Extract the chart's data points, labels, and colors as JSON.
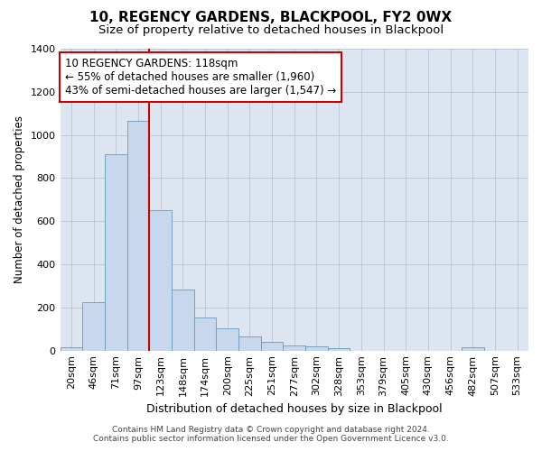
{
  "title": "10, REGENCY GARDENS, BLACKPOOL, FY2 0WX",
  "subtitle": "Size of property relative to detached houses in Blackpool",
  "xlabel": "Distribution of detached houses by size in Blackpool",
  "ylabel": "Number of detached properties",
  "bar_color": "#c8d8ec",
  "bar_edge_color": "#6699bb",
  "grid_color": "#c0c8d8",
  "bg_color": "#dde6f0",
  "vline_color": "#cc0000",
  "vline_x_index": 4,
  "categories": [
    "20sqm",
    "46sqm",
    "71sqm",
    "97sqm",
    "123sqm",
    "148sqm",
    "174sqm",
    "200sqm",
    "225sqm",
    "251sqm",
    "277sqm",
    "302sqm",
    "328sqm",
    "353sqm",
    "379sqm",
    "405sqm",
    "430sqm",
    "456sqm",
    "482sqm",
    "507sqm",
    "533sqm"
  ],
  "values": [
    15,
    225,
    910,
    1065,
    650,
    285,
    155,
    105,
    65,
    40,
    25,
    20,
    10,
    0,
    0,
    0,
    0,
    0,
    15,
    0,
    0
  ],
  "ylim": [
    0,
    1400
  ],
  "yticks": [
    0,
    200,
    400,
    600,
    800,
    1000,
    1200,
    1400
  ],
  "annotation_title": "10 REGENCY GARDENS: 118sqm",
  "annotation_line1": "← 55% of detached houses are smaller (1,960)",
  "annotation_line2": "43% of semi-detached houses are larger (1,547) →",
  "footer_line1": "Contains HM Land Registry data © Crown copyright and database right 2024.",
  "footer_line2": "Contains public sector information licensed under the Open Government Licence v3.0.",
  "title_fontsize": 11,
  "subtitle_fontsize": 9.5,
  "ylabel_fontsize": 8.5,
  "xlabel_fontsize": 9,
  "tick_fontsize": 8,
  "annotation_fontsize": 8.5,
  "footer_fontsize": 6.5
}
